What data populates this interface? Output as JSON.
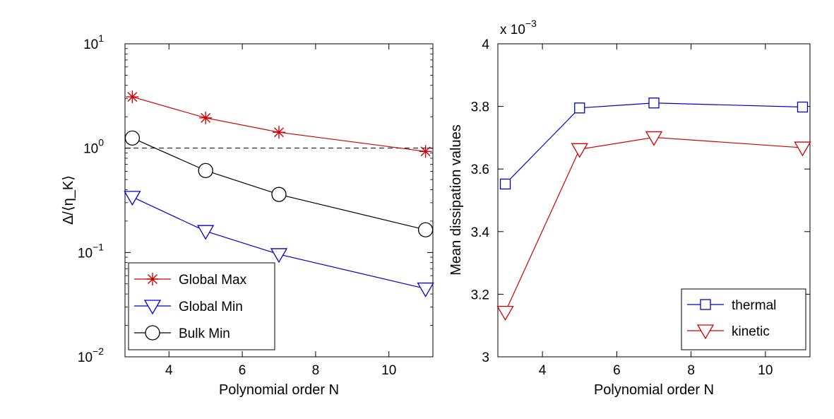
{
  "chart_data": [
    {
      "type": "line",
      "yscale": "log",
      "xlabel": "Polynomial order N",
      "ylabel": "Δ/⟨η_K⟩",
      "xlim": [
        2.8,
        11.2
      ],
      "ylim": [
        0.01,
        10
      ],
      "xticks": [
        4,
        6,
        8,
        10
      ],
      "yticks": [
        {
          "value": 0.01,
          "base": "10",
          "exp": "−2"
        },
        {
          "value": 0.1,
          "base": "10",
          "exp": "−1"
        },
        {
          "value": 1,
          "base": "10",
          "exp": "0"
        },
        {
          "value": 10,
          "base": "10",
          "exp": "1"
        }
      ],
      "reference_line": {
        "y": 1,
        "style": "dashed",
        "color": "#000000"
      },
      "legend_position": "bottom-left",
      "series": [
        {
          "name": "Global Max",
          "color": "#cc0000",
          "marker": "asterisk",
          "x": [
            3,
            5,
            7,
            11
          ],
          "y": [
            3.1,
            1.95,
            1.42,
            0.93
          ]
        },
        {
          "name": "Global Min",
          "color": "#0000cc",
          "marker": "triangle-down",
          "x": [
            3,
            5,
            7,
            11
          ],
          "y": [
            0.34,
            0.16,
            0.096,
            0.045
          ]
        },
        {
          "name": "Bulk Min",
          "color": "#000000",
          "marker": "circle",
          "x": [
            3,
            5,
            7,
            11
          ],
          "y": [
            1.25,
            0.61,
            0.36,
            0.165
          ]
        }
      ]
    },
    {
      "type": "line",
      "xlabel": "Polynomial order N",
      "ylabel": "Mean dissipation values",
      "multiplier": {
        "text": "x 10",
        "exp": "−3"
      },
      "xlim": [
        2.8,
        11.2
      ],
      "ylim": [
        3.0,
        4.0
      ],
      "xticks": [
        4,
        6,
        8,
        10
      ],
      "yticks": [
        "3",
        "3.2",
        "3.4",
        "3.6",
        "3.8",
        "4"
      ],
      "legend_position": "bottom-right",
      "series": [
        {
          "name": "thermal",
          "color": "#0000cc",
          "marker": "square",
          "x": [
            3,
            5,
            7,
            11
          ],
          "y": [
            3.552,
            3.795,
            3.811,
            3.798
          ]
        },
        {
          "name": "kinetic",
          "color": "#cc0000",
          "marker": "triangle-down",
          "x": [
            3,
            5,
            7,
            11
          ],
          "y": [
            3.143,
            3.663,
            3.701,
            3.668
          ]
        }
      ]
    }
  ]
}
